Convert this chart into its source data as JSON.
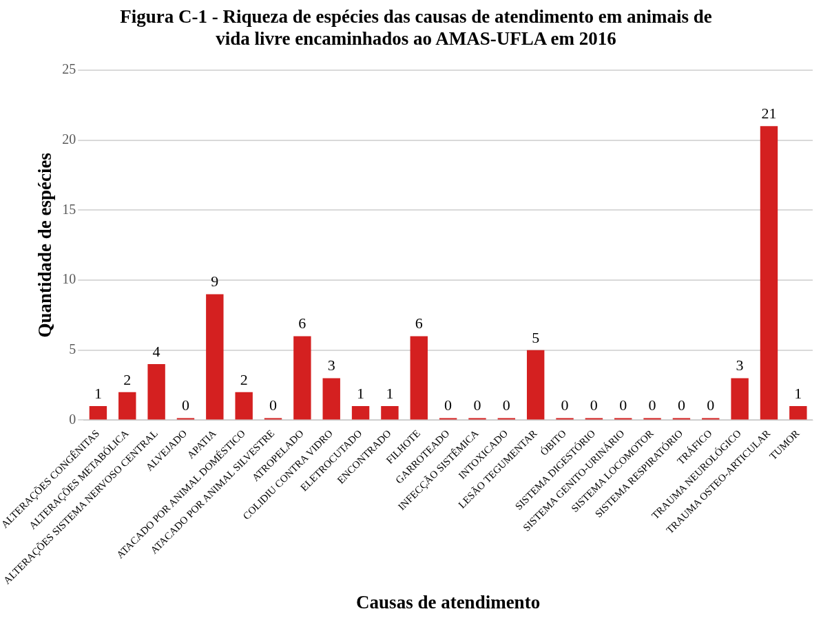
{
  "chart_data": {
    "type": "bar",
    "title": "Figura C-1 - Riqueza de espécies das causas de atendimento em animais de vida livre encaminhados ao AMAS-UFLA em 2016",
    "xlabel": "Causas de atendimento",
    "ylabel": "Quantidade de espécies",
    "categories": [
      "ALTERAÇÕES CONGÊNITAS",
      "ALTERAÇÕES METABÓLICA",
      "ALTERAÇÕES SISTEMA NERVOSO CENTRAL",
      "ALVEJADO",
      "APATIA",
      "ATACADO POR ANIMAL DOMÉSTICO",
      "ATACADO POR ANIMAL SILVESTRE",
      "ATROPELADO",
      "COLIDIU CONTRA VIDRO",
      "ELETROCUTADO",
      "ENCONTRADO",
      "FILHOTE",
      "GARROTEADO",
      "INFECÇÃO SISTÊMICA",
      "INTOXICADO",
      "LESÃO TEGUMENTAR",
      "ÓBITO",
      "SISTEMA DIGESTÓRIO",
      "SISTEMA GENITO-URINÁRIO",
      "SISTEMA LOCOMOTOR",
      "SISTEMA RESPIRATÓRIO",
      "TRÁFICO",
      "TRAUMA NEUROLÓGICO",
      "TRAUMA OSTEO-ARTICULAR",
      "TUMOR"
    ],
    "values": [
      1,
      2,
      4,
      0,
      9,
      2,
      0,
      6,
      3,
      1,
      1,
      6,
      0,
      0,
      0,
      5,
      0,
      0,
      0,
      0,
      0,
      0,
      3,
      21,
      1
    ],
    "color": "#d42020",
    "ylim": [
      0,
      25
    ],
    "yticks": [
      0,
      5,
      10,
      15,
      20,
      25
    ],
    "grid": "y",
    "legend": false,
    "data_labels": true
  }
}
